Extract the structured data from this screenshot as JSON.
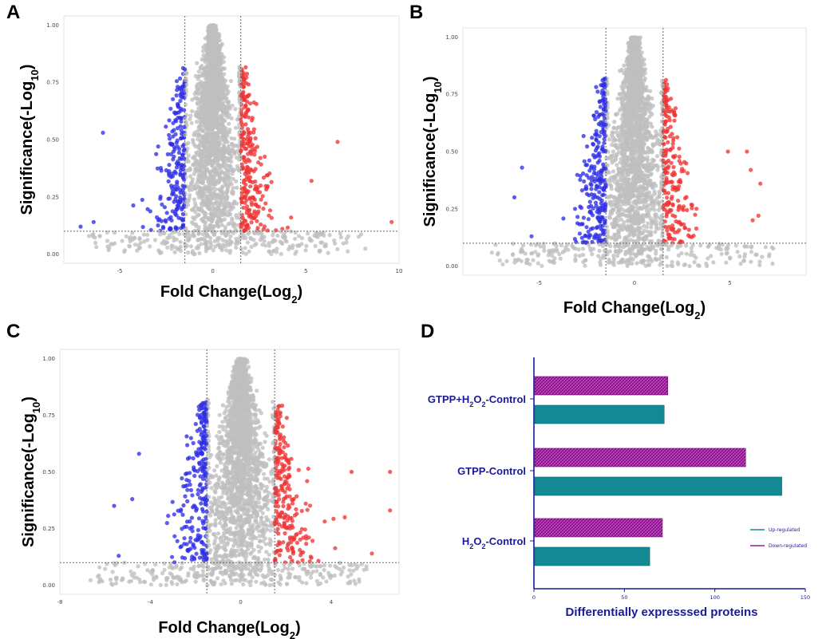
{
  "panels": [
    "A",
    "B",
    "C",
    "D"
  ],
  "colors": {
    "up": "#f03535",
    "down": "#2e2ee8",
    "ns": "#bfbfbf",
    "upreg_bar": "#138a93",
    "downreg_bar": "#9a1a9a",
    "axis_navy": "#1a1a9a"
  },
  "chart_data": [
    {
      "type": "scatter",
      "panel": "A",
      "xlabel": "Fold Change(Log",
      "xlabel_sub": "2",
      "xlabel_end": ")",
      "ylabel": "Significance(-Log",
      "ylabel_sub": "10",
      "ylabel_end": ")",
      "xlim": [
        -8,
        10
      ],
      "ylim": [
        -0.04,
        1.04
      ],
      "x_ticks": [
        -5,
        0,
        5,
        10
      ],
      "y_ticks": [
        "0.00",
        "0.25",
        "0.50",
        "0.75",
        "1.00"
      ],
      "thresholds": {
        "x_low": -1.5,
        "x_high": 1.5,
        "y": 0.1
      },
      "seed": 11,
      "down_outliers": [
        [
          -5.9,
          0.53
        ],
        [
          -7.1,
          0.12
        ],
        [
          -6.4,
          0.14
        ]
      ],
      "up_outliers": [
        [
          6.7,
          0.49
        ],
        [
          9.6,
          0.14
        ],
        [
          5.3,
          0.32
        ],
        [
          4.2,
          0.16
        ]
      ]
    },
    {
      "type": "scatter",
      "panel": "B",
      "xlabel": "Fold Change(Log",
      "xlabel_sub": "2",
      "xlabel_end": ")",
      "ylabel": "Significance(-Log",
      "ylabel_sub": "10",
      "ylabel_end": ")",
      "xlim": [
        -9,
        9
      ],
      "ylim": [
        -0.04,
        1.04
      ],
      "x_ticks": [
        -5,
        0,
        5
      ],
      "y_ticks": [
        "0.00",
        "0.25",
        "0.50",
        "0.75",
        "1.00"
      ],
      "thresholds": {
        "x_low": -1.5,
        "x_high": 1.5,
        "y": 0.1
      },
      "seed": 23,
      "down_outliers": [
        [
          -5.9,
          0.43
        ],
        [
          -6.3,
          0.3
        ],
        [
          -5.4,
          0.13
        ]
      ],
      "up_outliers": [
        [
          4.9,
          0.5
        ],
        [
          5.9,
          0.5
        ],
        [
          6.6,
          0.36
        ],
        [
          6.1,
          0.42
        ],
        [
          6.2,
          0.2
        ],
        [
          6.5,
          0.22
        ]
      ]
    },
    {
      "type": "scatter",
      "panel": "C",
      "xlabel": "Fold Change(Log",
      "xlabel_sub": "2",
      "xlabel_end": ")",
      "ylabel": "Significance(-Log",
      "ylabel_sub": "10",
      "ylabel_end": ")",
      "xlim": [
        -8,
        7
      ],
      "ylim": [
        -0.04,
        1.04
      ],
      "x_ticks": [
        -8,
        -4,
        0,
        4
      ],
      "y_ticks": [
        "0.00",
        "0.25",
        "0.50",
        "0.75",
        "1.00"
      ],
      "thresholds": {
        "x_low": -1.5,
        "x_high": 1.5,
        "y": 0.1
      },
      "seed": 37,
      "down_outliers": [
        [
          -5.6,
          0.35
        ],
        [
          -4.8,
          0.38
        ],
        [
          -5.4,
          0.13
        ],
        [
          -4.5,
          0.58
        ]
      ],
      "up_outliers": [
        [
          6.6,
          0.5
        ],
        [
          6.6,
          0.33
        ],
        [
          4.9,
          0.5
        ],
        [
          4.6,
          0.3
        ],
        [
          5.8,
          0.14
        ]
      ]
    },
    {
      "type": "bar",
      "panel": "D",
      "orientation": "horizontal",
      "categories": [
        "GTPP+H2O2-Control",
        "GTPP-Control",
        "H2O2-Control"
      ],
      "series": [
        {
          "name": "Up-regulated",
          "values": [
            72,
            137,
            64
          ]
        },
        {
          "name": "Down-regulated",
          "values": [
            74,
            117,
            71
          ]
        }
      ],
      "xlim": [
        0,
        150
      ],
      "x_ticks": [
        "0",
        "50",
        "100",
        "150"
      ],
      "xlabel": "Differentially expresssed proteins",
      "legend": [
        "Up-regulated",
        "Down-regulated"
      ]
    }
  ]
}
